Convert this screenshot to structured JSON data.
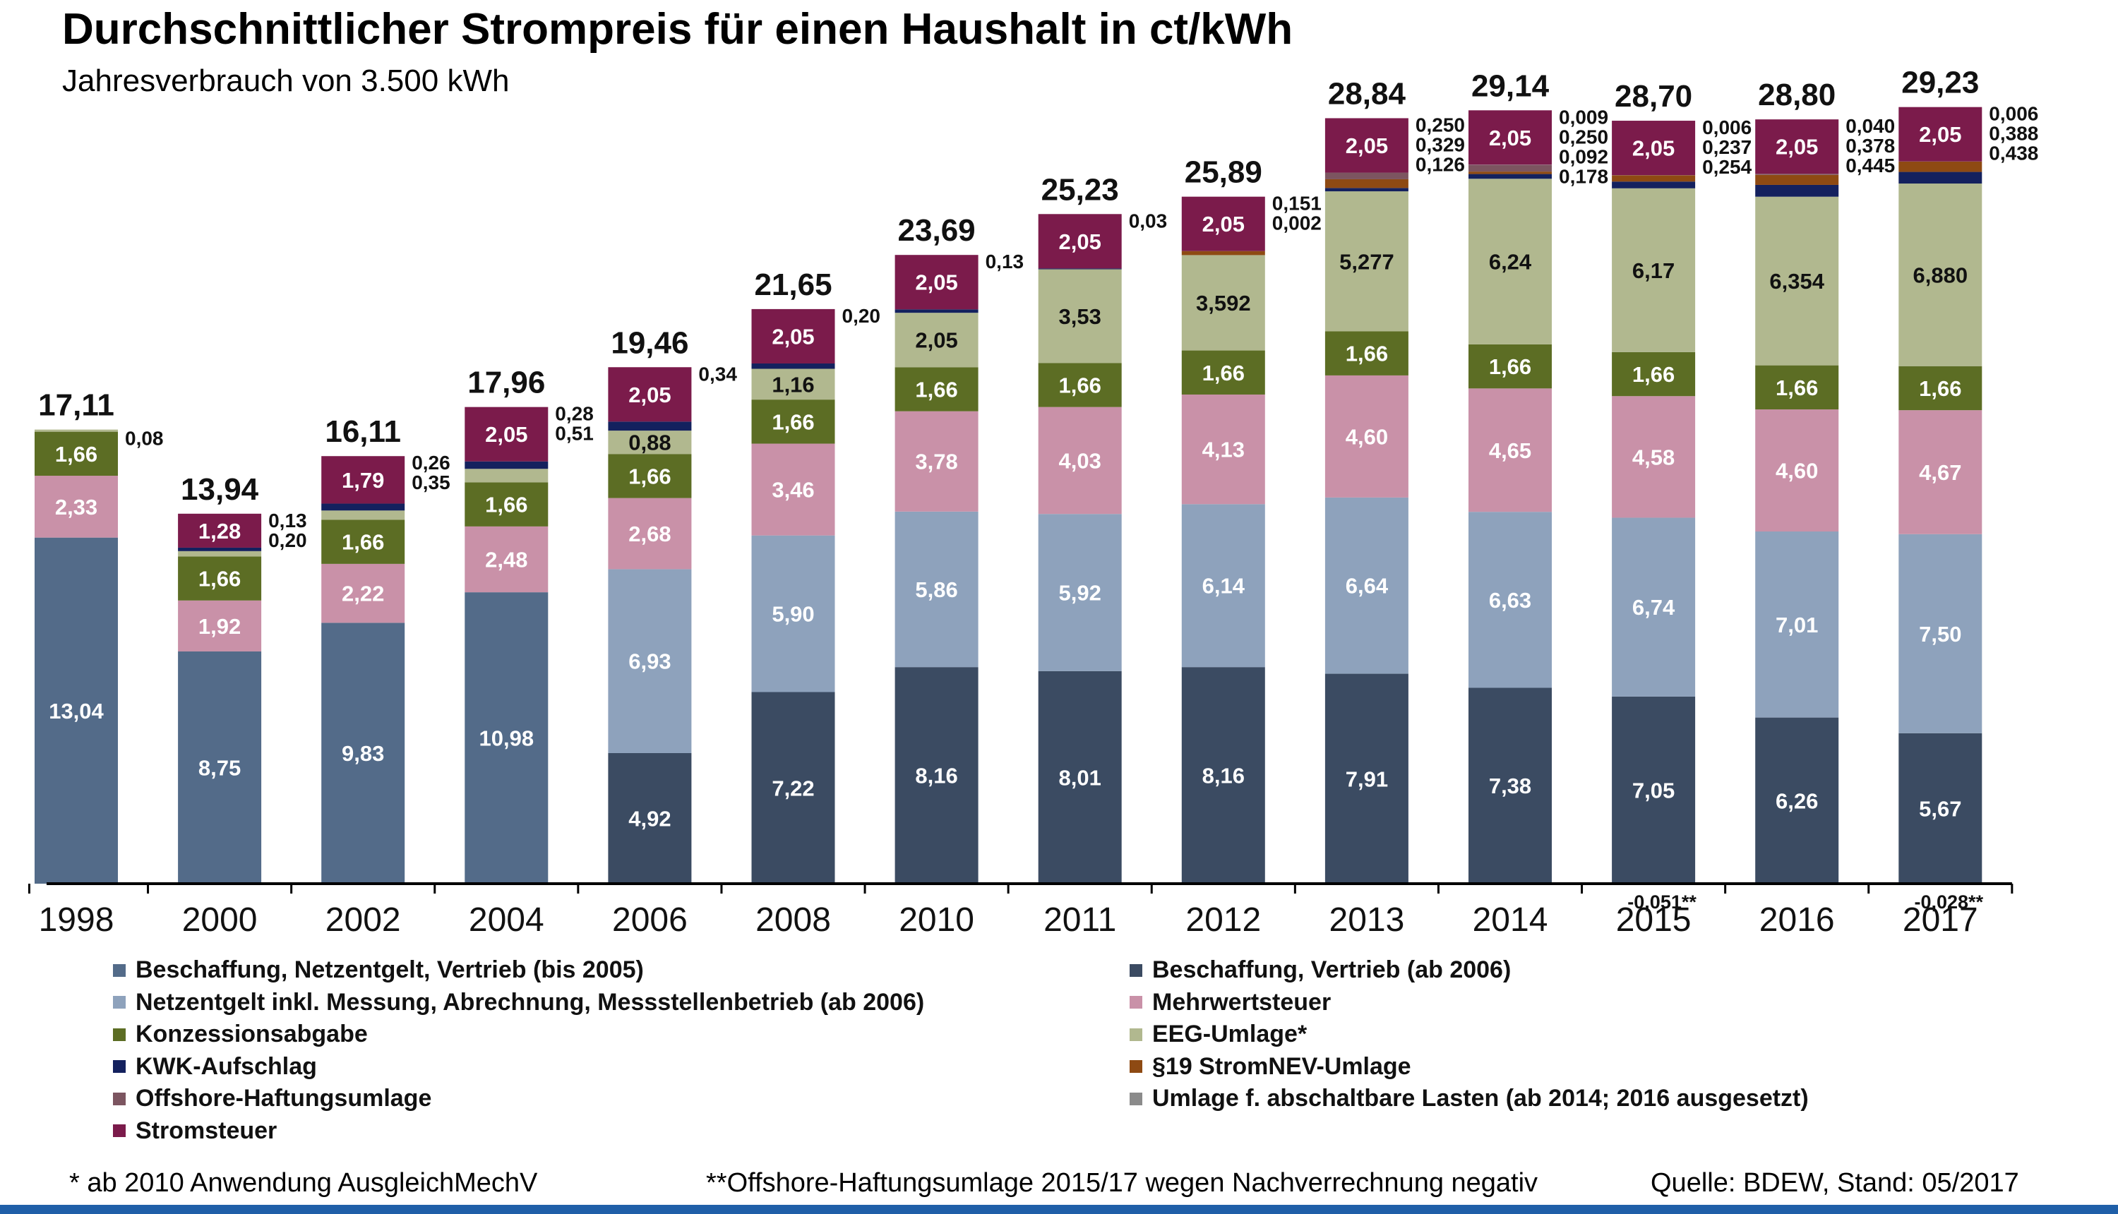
{
  "title": "Durchschnittlicher Strompreis für einen Haushalt in ct/kWh",
  "subtitle": "Jahresverbrauch von 3.500 kWh",
  "chart_data": {
    "type": "stacked-bar",
    "title": "Durchschnittlicher Strompreis für einen Haushalt in ct/kWh",
    "subtitle": "Jahresverbrauch von 3.500 kWh",
    "ylabel": "ct/kWh",
    "ylim": [
      0,
      30
    ],
    "grid": false,
    "legend_position": "bottom",
    "categories": [
      "1998",
      "2000",
      "2002",
      "2004",
      "2006",
      "2008",
      "2010",
      "2011",
      "2012",
      "2013",
      "2014",
      "2015",
      "2016",
      "2017"
    ],
    "totals": [
      "17,11",
      "13,94",
      "16,11",
      "17,96",
      "19,46",
      "21,65",
      "23,69",
      "25,23",
      "25,89",
      "28,84",
      "29,14",
      "28,70",
      "28,80",
      "29,23"
    ],
    "series": [
      {
        "key": "alt",
        "name": "Beschaffung, Netzentgelt, Vertrieb (bis 2005)",
        "color": "#536b89",
        "values": [
          13.04,
          8.75,
          9.83,
          10.98,
          0,
          0,
          0,
          0,
          0,
          0,
          0,
          0,
          0,
          0
        ],
        "labels": [
          "13,04",
          "8,75",
          "9,83",
          "10,98",
          "",
          "",
          "",
          "",
          "",
          "",
          "",
          "",
          "",
          ""
        ]
      },
      {
        "key": "beschaffung",
        "name": "Beschaffung, Vertrieb (ab 2006)",
        "color": "#3b4b62",
        "values": [
          0,
          0,
          0,
          0,
          4.92,
          7.22,
          8.16,
          8.01,
          8.16,
          7.91,
          7.38,
          7.05,
          6.26,
          5.67
        ],
        "labels": [
          "",
          "",
          "",
          "",
          "4,92",
          "7,22",
          "8,16",
          "8,01",
          "8,16",
          "7,91",
          "7,38",
          "7,05",
          "6,26",
          "5,67"
        ]
      },
      {
        "key": "netz",
        "name": "Netzentgelt inkl. Messung, Abrechnung, Messstellenbetrieb (ab 2006)",
        "color": "#8ea2bc",
        "values": [
          0,
          0,
          0,
          0,
          6.93,
          5.9,
          5.86,
          5.92,
          6.14,
          6.64,
          6.63,
          6.74,
          7.01,
          7.5
        ],
        "labels": [
          "",
          "",
          "",
          "",
          "6,93",
          "5,90",
          "5,86",
          "5,92",
          "6,14",
          "6,64",
          "6,63",
          "6,74",
          "7,01",
          "7,50"
        ]
      },
      {
        "key": "mwst",
        "name": "Mehrwertsteuer",
        "color": "#c991a8",
        "values": [
          2.33,
          1.92,
          2.22,
          2.48,
          2.68,
          3.46,
          3.78,
          4.03,
          4.13,
          4.6,
          4.65,
          4.58,
          4.6,
          4.67
        ],
        "labels": [
          "2,33",
          "1,92",
          "2,22",
          "2,48",
          "2,68",
          "3,46",
          "3,78",
          "4,03",
          "4,13",
          "4,60",
          "4,65",
          "4,58",
          "4,60",
          "4,67"
        ]
      },
      {
        "key": "konz",
        "name": "Konzessionsabgabe",
        "color": "#5c6d24",
        "values": [
          1.66,
          1.66,
          1.66,
          1.66,
          1.66,
          1.66,
          1.66,
          1.66,
          1.66,
          1.66,
          1.66,
          1.66,
          1.66,
          1.66
        ],
        "labels": [
          "1,66",
          "1,66",
          "1,66",
          "1,66",
          "1,66",
          "1,66",
          "1,66",
          "1,66",
          "1,66",
          "1,66",
          "1,66",
          "1,66",
          "1,66",
          "1,66"
        ]
      },
      {
        "key": "eeg",
        "name": "EEG-Umlage*",
        "color": "#b1b88f",
        "values": [
          0.08,
          0.2,
          0.35,
          0.51,
          0.88,
          1.16,
          2.05,
          3.53,
          3.592,
          5.277,
          6.24,
          6.17,
          6.354,
          6.88
        ],
        "labels": [
          "",
          "",
          "",
          "",
          "0,88",
          "1,16",
          "2,05",
          "3,53",
          "3,592",
          "5,277",
          "6,24",
          "6,17",
          "6,354",
          "6,880"
        ]
      },
      {
        "key": "kwk",
        "name": "KWK-Aufschlag",
        "color": "#14215e",
        "values": [
          0,
          0.13,
          0.26,
          0.28,
          0.34,
          0.2,
          0.13,
          0.03,
          0.002,
          0.126,
          0.178,
          0.254,
          0.445,
          0.438
        ],
        "labels": [
          "",
          "",
          "",
          "",
          "",
          "",
          "",
          "",
          "",
          "",
          "",
          "",
          "",
          ""
        ]
      },
      {
        "key": "nev",
        "name": "§19 StromNEV-Umlage",
        "color": "#8e4a13",
        "values": [
          0,
          0,
          0,
          0,
          0,
          0,
          0,
          0,
          0.151,
          0.329,
          0.092,
          0.237,
          0.378,
          0.388
        ],
        "labels": [
          "",
          "",
          "",
          "",
          "",
          "",
          "",
          "",
          "",
          "",
          "",
          "",
          "",
          ""
        ]
      },
      {
        "key": "offshore",
        "name": "Offshore-Haftungsumlage",
        "color": "#7c5560",
        "values": [
          0,
          0,
          0,
          0,
          0,
          0,
          0,
          0,
          0,
          0.25,
          0.25,
          -0.051,
          0.04,
          -0.028
        ],
        "labels": [
          "",
          "",
          "",
          "",
          "",
          "",
          "",
          "",
          "",
          "",
          "",
          "",
          "",
          ""
        ]
      },
      {
        "key": "abschalt",
        "name": "Umlage f. abschaltbare Lasten (ab 2014; 2016 ausgesetzt)",
        "color": "#8b8b8b",
        "values": [
          0,
          0,
          0,
          0,
          0,
          0,
          0,
          0,
          0,
          0,
          0.009,
          0.006,
          0,
          0.006
        ],
        "labels": [
          "",
          "",
          "",
          "",
          "",
          "",
          "",
          "",
          "",
          "",
          "",
          "",
          "",
          ""
        ]
      },
      {
        "key": "steuer",
        "name": "Stromsteuer",
        "color": "#7b1b4b",
        "values": [
          0,
          1.28,
          1.79,
          2.05,
          2.05,
          2.05,
          2.05,
          2.05,
          2.05,
          2.05,
          2.05,
          2.05,
          2.05,
          2.05
        ],
        "labels": [
          "",
          "1,28",
          "1,79",
          "2,05",
          "2,05",
          "2,05",
          "2,05",
          "2,05",
          "2,05",
          "2,05",
          "2,05",
          "2,05",
          "2,05",
          "2,05"
        ]
      }
    ],
    "side_labels": [
      [
        "0,08"
      ],
      [
        "0,13",
        "0,20"
      ],
      [
        "0,26",
        "0,35"
      ],
      [
        "0,28",
        "0,51"
      ],
      [
        "0,34"
      ],
      [
        "0,20"
      ],
      [
        "0,13"
      ],
      [
        "0,03"
      ],
      [
        "0,151",
        "0,002"
      ],
      [
        "0,250",
        "0,329",
        "0,126"
      ],
      [
        "0,009",
        "0,250",
        "0,092",
        "0,178"
      ],
      [
        "0,006",
        "0,237",
        "0,254"
      ],
      [
        "0,040",
        "0,378",
        "0,445"
      ],
      [
        "0,006",
        "0,388",
        "0,438"
      ]
    ],
    "below_axis_labels": {
      "2015": "-0,051**",
      "2017": "-0,028**"
    }
  },
  "legend": [
    {
      "label": "Beschaffung, Netzentgelt, Vertrieb (bis 2005)",
      "color": "#536b89"
    },
    {
      "label": "Beschaffung, Vertrieb (ab 2006)",
      "color": "#3b4b62"
    },
    {
      "label": "Netzentgelt inkl. Messung, Abrechnung, Messstellenbetrieb (ab 2006)",
      "color": "#8ea2bc"
    },
    {
      "label": "Mehrwertsteuer",
      "color": "#c991a8"
    },
    {
      "label": "Konzessionsabgabe",
      "color": "#5c6d24"
    },
    {
      "label": "EEG-Umlage*",
      "color": "#b1b88f"
    },
    {
      "label": "KWK-Aufschlag",
      "color": "#14215e"
    },
    {
      "label": "§19 StromNEV-Umlage",
      "color": "#8e4a13"
    },
    {
      "label": "Offshore-Haftungsumlage",
      "color": "#7c5560"
    },
    {
      "label": "Umlage f. abschaltbare Lasten (ab 2014; 2016 ausgesetzt)",
      "color": "#8b8b8b"
    },
    {
      "label": "Stromsteuer",
      "color": "#7b1b4b"
    }
  ],
  "footnotes": {
    "note1": "* ab 2010 Anwendung AusgleichMechV",
    "note2": "**Offshore-Haftungsumlage 2015/17 wegen Nachverrechnung negativ",
    "source": "Quelle: BDEW, Stand: 05/2017"
  },
  "colors": {
    "accent_bar": "#1f5fa8",
    "axis": "#000000"
  }
}
